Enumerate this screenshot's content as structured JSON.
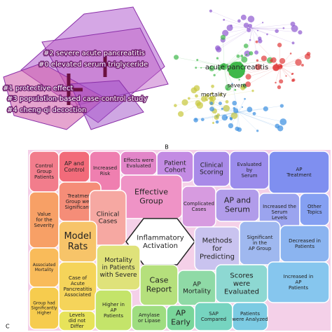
{
  "panel_a": {
    "clusters": [
      "#2 severe acute pancreatitis",
      "#0 elevated serum triglyceride",
      "#1 protective effect",
      "#3 population-based case-control study",
      "#4 cheng-qi decoction"
    ]
  },
  "panel_b": {
    "label": "B",
    "nodes": [
      "acute pancreatitis",
      "severe",
      "mortality"
    ]
  },
  "panel_c": {
    "label": "C",
    "cells": [
      {
        "lines": [
          "Control",
          "Group",
          "Patients"
        ],
        "color": "#f27d8c"
      },
      {
        "lines": [
          "AP and",
          "Control"
        ],
        "color": "#f26b7a"
      },
      {
        "lines": [
          "Increased",
          "Risk"
        ],
        "color": "#ef7fb0"
      },
      {
        "lines": [
          "Effects were",
          "Evaluated"
        ],
        "color": "#e286c9"
      },
      {
        "lines": [
          "Patient",
          "Cohort"
        ],
        "color": "#c38be3"
      },
      {
        "lines": [
          "Clinical",
          "Scoring"
        ],
        "color": "#a98ae8"
      },
      {
        "lines": [
          "Evaluated",
          "by",
          "Serum"
        ],
        "color": "#9b8cec"
      },
      {
        "lines": [
          "AP",
          "Treatment"
        ],
        "color": "#7f8ff0"
      },
      {
        "lines": [
          "Treatment",
          "Group were",
          "Significantly"
        ],
        "color": "#f58d78"
      },
      {
        "lines": [
          "Effective",
          "Group"
        ],
        "color": "#ef93c6"
      },
      {
        "lines": [
          "Complicated",
          "Cases"
        ],
        "color": "#d79be0"
      },
      {
        "lines": [
          "AP and",
          "Serum"
        ],
        "color": "#b19cea"
      },
      {
        "lines": [
          "Increased the",
          "Serum",
          "Levels"
        ],
        "color": "#9ba4ef"
      },
      {
        "lines": [
          "Other",
          "Topics"
        ],
        "color": "#85a0f2"
      },
      {
        "lines": [
          "Value",
          "for the",
          "Severity"
        ],
        "color": "#f7a066"
      },
      {
        "lines": [
          "Clinical",
          "Cases"
        ],
        "color": "#f6a8a2"
      },
      {
        "lines": [
          "Model",
          "Rats"
        ],
        "color": "#f7c469"
      },
      {
        "lines": [
          "Inflammatory",
          "Activation"
        ],
        "color": "#ffffff"
      },
      {
        "lines": [
          "Methods",
          "for",
          "Predicting"
        ],
        "color": "#c9c3ef"
      },
      {
        "lines": [
          "Significant",
          "in the",
          "AP Group"
        ],
        "color": "#9fb8ef"
      },
      {
        "lines": [
          "Decreased in",
          "Patients"
        ],
        "color": "#8bb4f0"
      },
      {
        "lines": [
          "Associated",
          "Mortality"
        ],
        "color": "#f9bb5a"
      },
      {
        "lines": [
          "Mortality",
          "in Patients",
          "with Severe"
        ],
        "color": "#dfe27a"
      },
      {
        "lines": [
          "Case of",
          "Acute",
          "Pancreatitis",
          "Associated"
        ],
        "color": "#f5d45a"
      },
      {
        "lines": [
          "Case",
          "Report"
        ],
        "color": "#b5e07c"
      },
      {
        "lines": [
          "AP",
          "Mortality"
        ],
        "color": "#8fdaa6"
      },
      {
        "lines": [
          "Scores",
          "were",
          "Evaluated"
        ],
        "color": "#8dd8d2"
      },
      {
        "lines": [
          "Increased in",
          "AP",
          "Patients"
        ],
        "color": "#86c6ee"
      },
      {
        "lines": [
          "Group had",
          "Significantly",
          "Higher"
        ],
        "color": "#f6cc4e"
      },
      {
        "lines": [
          "Levels",
          "did not",
          "Differ"
        ],
        "color": "#e7e35a"
      },
      {
        "lines": [
          "Higher in",
          "AP",
          "Patients"
        ],
        "color": "#c4e46a"
      },
      {
        "lines": [
          "Amylase",
          "or Lipase"
        ],
        "color": "#9fdd80"
      },
      {
        "lines": [
          "AP",
          "Early"
        ],
        "color": "#79d69a"
      },
      {
        "lines": [
          "SAP",
          "Compared"
        ],
        "color": "#76d4c0"
      },
      {
        "lines": [
          "Patients",
          "were Analyzed"
        ],
        "color": "#7ccbe3"
      }
    ]
  }
}
